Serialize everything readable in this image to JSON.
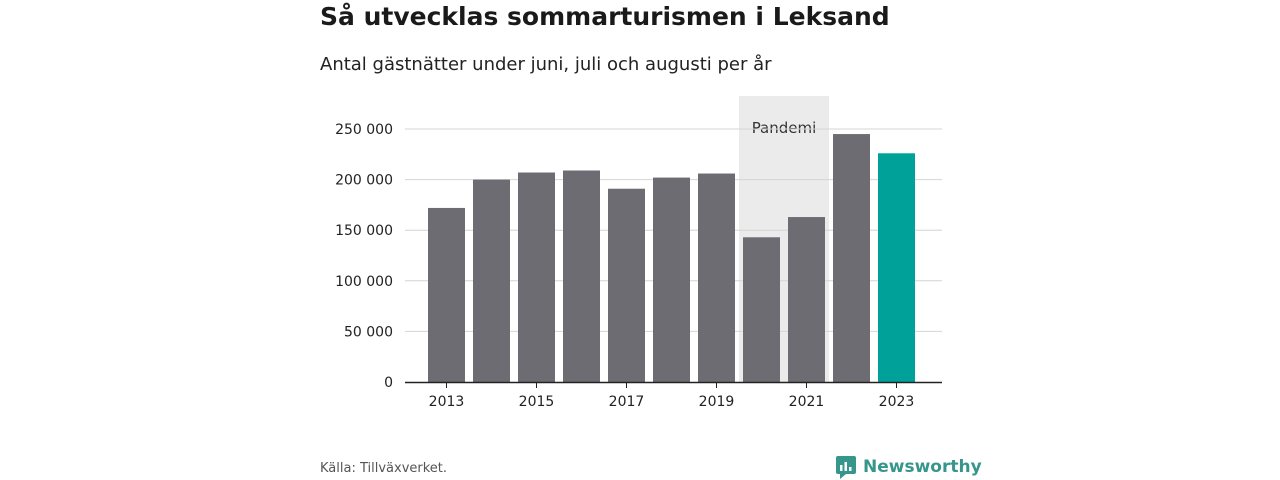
{
  "header": {
    "title": "Så utvecklas sommarturismen i Leksand",
    "subtitle": "Antal gästnätter under juni, juli och augusti per år"
  },
  "footer": {
    "source": "Källa: Tillväxverket.",
    "brand": "Newsworthy"
  },
  "colors": {
    "bar": "#6d6c72",
    "highlight": "#00a198",
    "band": "#ebebeb",
    "grid": "#d4d4d4",
    "brand": "#36968c"
  },
  "chart_data": {
    "type": "bar",
    "title": "Så utvecklas sommarturismen i Leksand",
    "subtitle": "Antal gästnätter under juni, juli och augusti per år",
    "categories": [
      "2013",
      "2014",
      "2015",
      "2016",
      "2017",
      "2018",
      "2019",
      "2020",
      "2021",
      "2022",
      "2023"
    ],
    "values": [
      172000,
      200000,
      207000,
      209000,
      191000,
      202000,
      206000,
      143000,
      163000,
      245000,
      226000
    ],
    "highlight_category": "2023",
    "ylim": [
      0,
      270000
    ],
    "yticks": [
      0,
      50000,
      100000,
      150000,
      200000,
      250000
    ],
    "ytick_labels": [
      "0",
      "50 000",
      "100 000",
      "150 000",
      "200 000",
      "250 000"
    ],
    "xtick_labels": [
      "2013",
      "2015",
      "2017",
      "2019",
      "2021",
      "2023"
    ],
    "shaded_region": {
      "label": "Pandemi",
      "categories": [
        "2020",
        "2021"
      ]
    },
    "grid": true,
    "legend": "none"
  }
}
